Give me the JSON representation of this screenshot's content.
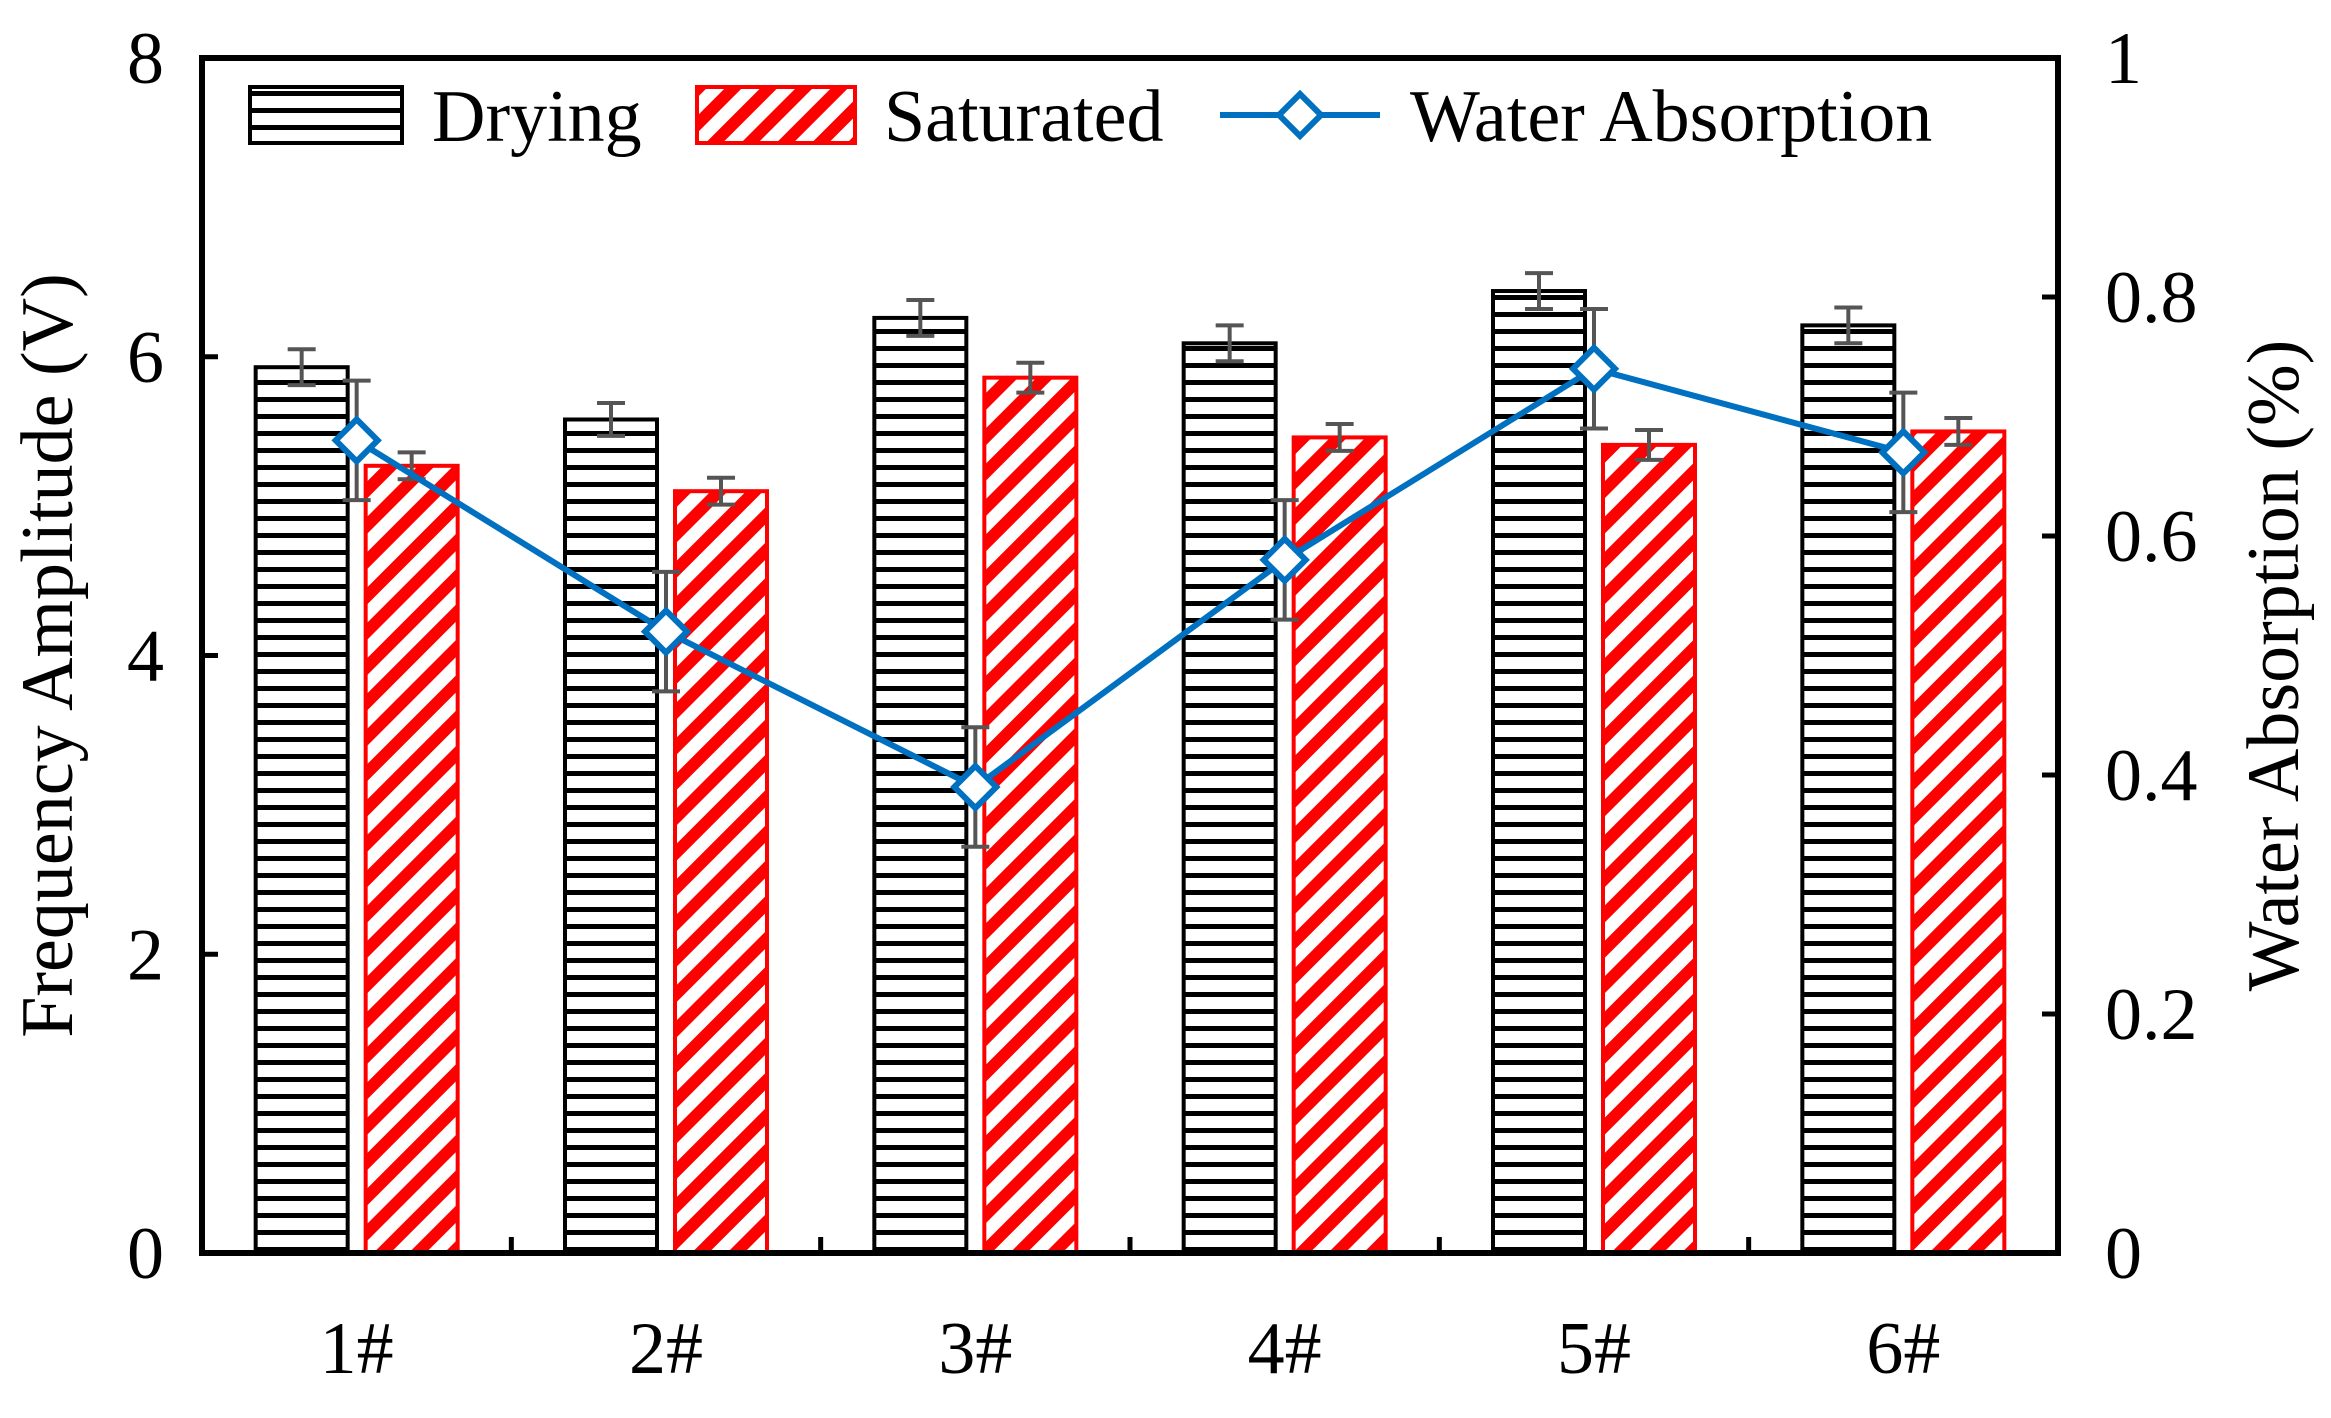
{
  "chart_data": {
    "type": "bar",
    "categories": [
      "1#",
      "2#",
      "3#",
      "4#",
      "5#",
      "6#"
    ],
    "series": [
      {
        "name": "Drying",
        "kind": "bar",
        "axis": "left",
        "values": [
          5.93,
          5.58,
          6.26,
          6.09,
          6.44,
          6.21
        ],
        "errors": [
          0.12,
          0.11,
          0.12,
          0.12,
          0.12,
          0.12
        ],
        "pattern": "horizontal-lines",
        "color": "#000000"
      },
      {
        "name": "Saturated",
        "kind": "bar",
        "axis": "left",
        "values": [
          5.27,
          5.1,
          5.86,
          5.46,
          5.41,
          5.5
        ],
        "errors": [
          0.09,
          0.09,
          0.1,
          0.09,
          0.1,
          0.09
        ],
        "pattern": "diagonal-hatch",
        "color": "#ff0000"
      },
      {
        "name": "Water Absorption",
        "kind": "line",
        "axis": "right",
        "values": [
          0.68,
          0.52,
          0.39,
          0.58,
          0.74,
          0.67
        ],
        "errors": [
          0.05,
          0.05,
          0.05,
          0.05,
          0.05,
          0.05
        ],
        "marker": "diamond",
        "color": "#0070c0"
      }
    ],
    "ylabel": "Frequency Amplitude (V)",
    "y2label": "Water Absorption (%)",
    "xlabel": "",
    "ylim": [
      0,
      8
    ],
    "y2lim": [
      0,
      1
    ],
    "yticks": [
      "0",
      "2",
      "4",
      "6",
      "8"
    ],
    "y2ticks": [
      "0",
      "0.2",
      "0.4",
      "0.6",
      "0.8",
      "1"
    ],
    "legend_position": "top",
    "grid": false,
    "errorbar_color": "#555555"
  }
}
